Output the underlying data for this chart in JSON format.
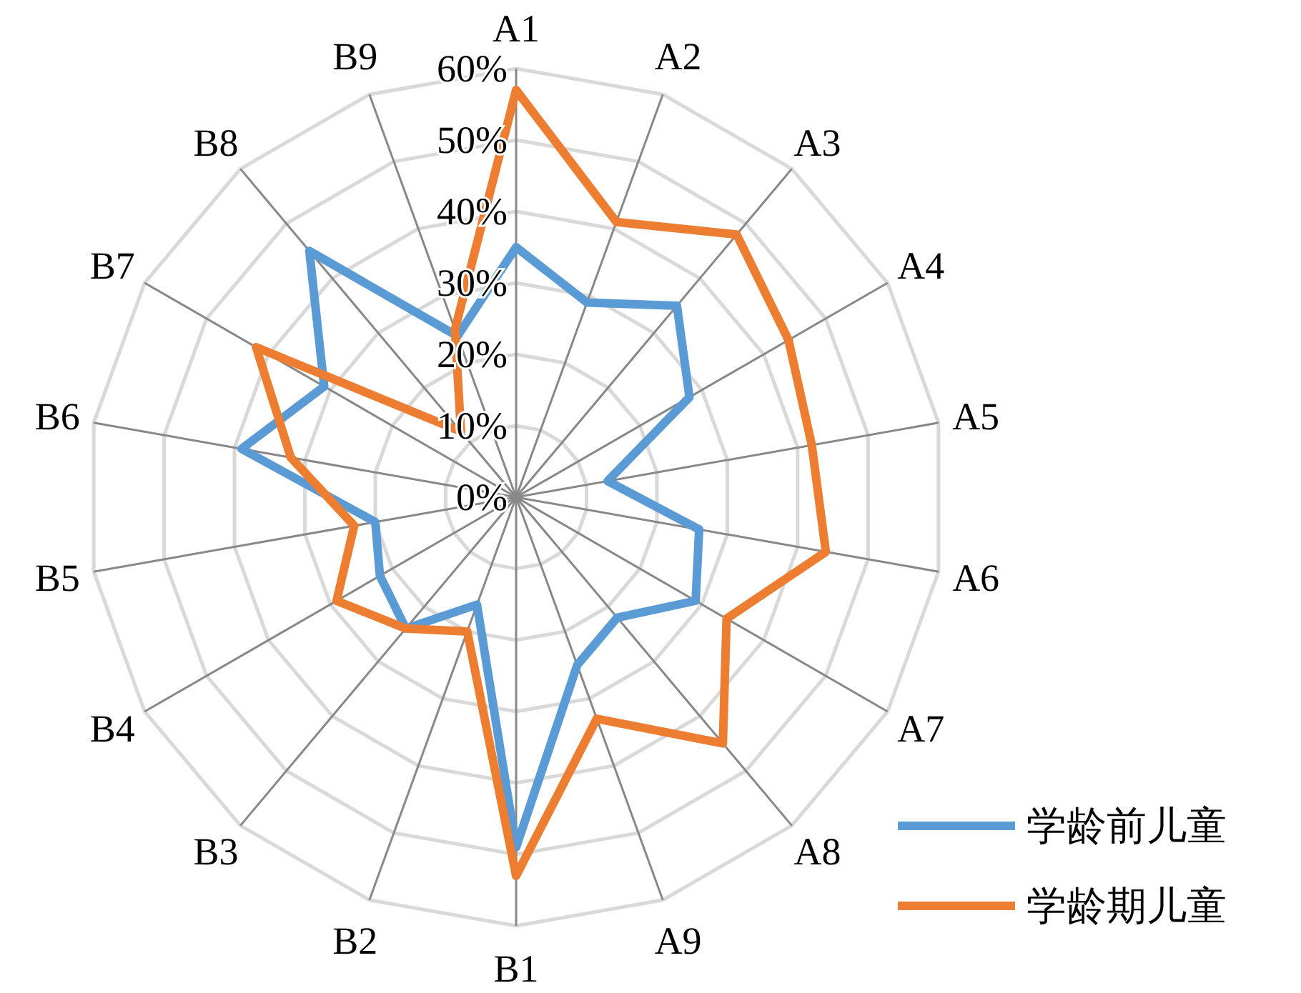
{
  "chart_data": {
    "type": "radar",
    "categories": [
      "A1",
      "A2",
      "A3",
      "A4",
      "A5",
      "A6",
      "A7",
      "A8",
      "A9",
      "B1",
      "B2",
      "B3",
      "B4",
      "B5",
      "B6",
      "B7",
      "B8",
      "B9"
    ],
    "series": [
      {
        "name": "学龄前儿童",
        "color": "#5b9bd5",
        "values": [
          35,
          29,
          35,
          28,
          13,
          26,
          29,
          22,
          25,
          49,
          16,
          24,
          22,
          20,
          39,
          31,
          45,
          24
        ]
      },
      {
        "name": "学龄期儿童",
        "color": "#ed7d31",
        "values": [
          57,
          41,
          48,
          44,
          42,
          44,
          34,
          45,
          33,
          53,
          20,
          24,
          29,
          23,
          32,
          42,
          12,
          25
        ]
      }
    ],
    "ylim": [
      0,
      60
    ],
    "yticks": [
      {
        "value": 0,
        "label": "0%"
      },
      {
        "value": 10,
        "label": "10%"
      },
      {
        "value": 20,
        "label": "20%"
      },
      {
        "value": 30,
        "label": "30%"
      },
      {
        "value": 40,
        "label": "40%"
      },
      {
        "value": 50,
        "label": "50%"
      },
      {
        "value": 60,
        "label": "60%"
      }
    ],
    "grid": true,
    "legend": "bottom right"
  }
}
